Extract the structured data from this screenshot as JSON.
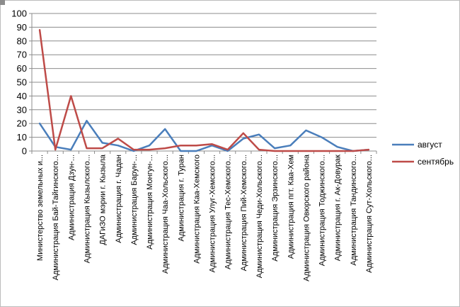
{
  "chart_data": {
    "type": "line",
    "title": "",
    "xlabel": "",
    "ylabel": "",
    "ylim": [
      0,
      100
    ],
    "yticks": [
      0,
      10,
      20,
      30,
      40,
      50,
      60,
      70,
      80,
      90,
      100
    ],
    "grid": "horizontal",
    "legend_position": "right",
    "categories": [
      "Министерство земельных и...",
      "Администрация Бай-Тайгинского...",
      "Администрация Дзун-...",
      "Администрация Кызылского...",
      "ДАГиЗО мэрии г. Кызыла",
      "Администрация г. Чадан",
      "Администрация Барун-...",
      "Администрация Монгун-...",
      "Администрация Чаа-Хольского...",
      "Администрация г. Туран",
      "Администрация Каа-Хемского",
      "Администрация Улуг-Хемского...",
      "Администрация Тес-Хемского...",
      "Администрация Пий-Хемского...",
      "Администрация Чеди-Хольского...",
      "Администрация Эрзинского...",
      "Администрация пгт. Каа-Хем",
      "Администрация Овюрского района",
      "Администрация Тоджинского...",
      "Администрация г. Ак-Довурак",
      "Администрация Тандинского...",
      "Администрация Сут-Хольского..."
    ],
    "series": [
      {
        "name": "август",
        "color": "#4a7ebb",
        "values": [
          20,
          3,
          1,
          22,
          6,
          4,
          0,
          4,
          16,
          0,
          0,
          4,
          0,
          9,
          12,
          2,
          4,
          15,
          10,
          3,
          0,
          1
        ]
      },
      {
        "name": "сентябрь",
        "color": "#be4b48",
        "values": [
          88,
          1,
          40,
          2,
          2,
          9,
          1,
          1,
          2,
          4,
          4,
          5,
          1,
          13,
          1,
          0,
          0,
          0,
          0,
          0,
          0,
          1
        ]
      }
    ]
  }
}
